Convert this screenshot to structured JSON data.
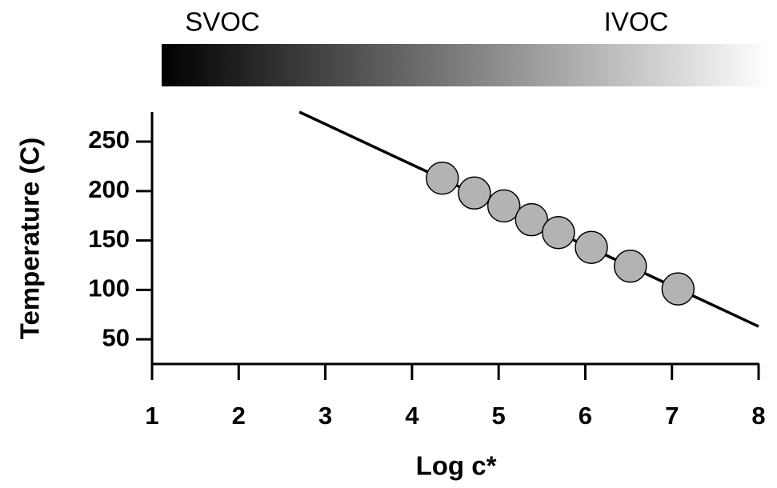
{
  "chart_data": {
    "type": "scatter",
    "annotations": [
      "SVOC",
      "IVOC"
    ],
    "xlabel": "Log c*",
    "ylabel": "Temperature (C)",
    "xlim": [
      1,
      8
    ],
    "xticks": [
      1,
      2,
      3,
      4,
      5,
      6,
      7,
      8
    ],
    "ylim": [
      25,
      280
    ],
    "yticks": [
      50,
      100,
      150,
      200,
      250
    ],
    "points": {
      "color": "#b3b3b3",
      "x": [
        4.35,
        4.72,
        5.06,
        5.38,
        5.69,
        6.07,
        6.52,
        7.07
      ],
      "values": [
        213,
        198,
        185,
        171,
        158,
        143,
        124,
        101
      ]
    },
    "line": {
      "color": "#000000",
      "x": [
        2.7,
        8
      ],
      "values": [
        280,
        63
      ]
    }
  }
}
